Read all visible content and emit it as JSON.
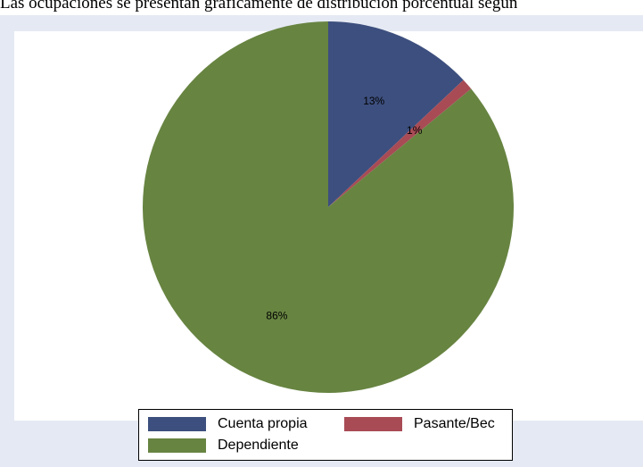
{
  "header_text": "Las ocupaciones se presentan gráficamente de distribución porcentual según",
  "chart_data": {
    "type": "pie",
    "title": "",
    "slices": [
      {
        "name": "Cuenta propia",
        "value": 13,
        "label": "13%",
        "color": "#3d4f7e"
      },
      {
        "name": "Pasante/Bec",
        "value": 1,
        "label": "1%",
        "color": "#a84b55"
      },
      {
        "name": "Dependiente",
        "value": 86,
        "label": "86%",
        "color": "#678441"
      }
    ],
    "start_angle_deg": 0,
    "direction": "clockwise",
    "legend": {
      "placement": "bottom",
      "columns": 2,
      "entries": [
        "Cuenta propia",
        "Pasante/Bec",
        "Dependiente"
      ]
    },
    "background_color": "#e5e9f3",
    "plot_background_color": "#ffffff"
  }
}
